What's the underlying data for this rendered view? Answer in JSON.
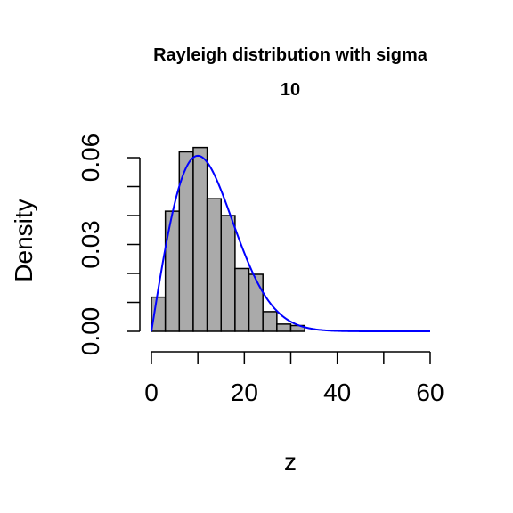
{
  "chart_data": {
    "type": "bar",
    "title_line1": "Rayleigh distribution with sigma",
    "title_line2": "10",
    "xlabel": "z",
    "ylabel": "Density",
    "xlim": [
      0,
      60
    ],
    "ylim": [
      0,
      0.06
    ],
    "x_ticks": [
      0,
      10,
      20,
      30,
      40,
      50,
      60
    ],
    "x_tick_labels": [
      "0",
      "",
      "20",
      "",
      "40",
      "",
      "60"
    ],
    "y_ticks": [
      0,
      0.01,
      0.02,
      0.03,
      0.04,
      0.05,
      0.06
    ],
    "y_tick_labels": [
      "0.00",
      "",
      "",
      "0.03",
      "",
      "",
      "0.06"
    ],
    "bin_width": 3,
    "bins": [
      {
        "x0": 0,
        "x1": 3,
        "density": 0.0118
      },
      {
        "x0": 3,
        "x1": 6,
        "density": 0.0415
      },
      {
        "x0": 6,
        "x1": 9,
        "density": 0.062
      },
      {
        "x0": 9,
        "x1": 12,
        "density": 0.0635
      },
      {
        "x0": 12,
        "x1": 15,
        "density": 0.0458
      },
      {
        "x0": 15,
        "x1": 18,
        "density": 0.04
      },
      {
        "x0": 18,
        "x1": 21,
        "density": 0.0217
      },
      {
        "x0": 21,
        "x1": 24,
        "density": 0.0197
      },
      {
        "x0": 24,
        "x1": 27,
        "density": 0.0068
      },
      {
        "x0": 27,
        "x1": 30,
        "density": 0.0025
      },
      {
        "x0": 30,
        "x1": 33,
        "density": 0.002
      }
    ],
    "curve": {
      "type": "rayleigh",
      "sigma": 10,
      "from": 0,
      "to": 60
    },
    "colors": {
      "bar_fill": "#aaaaaa",
      "bar_stroke": "#000000",
      "curve": "#0000ff",
      "axis": "#000000"
    }
  }
}
